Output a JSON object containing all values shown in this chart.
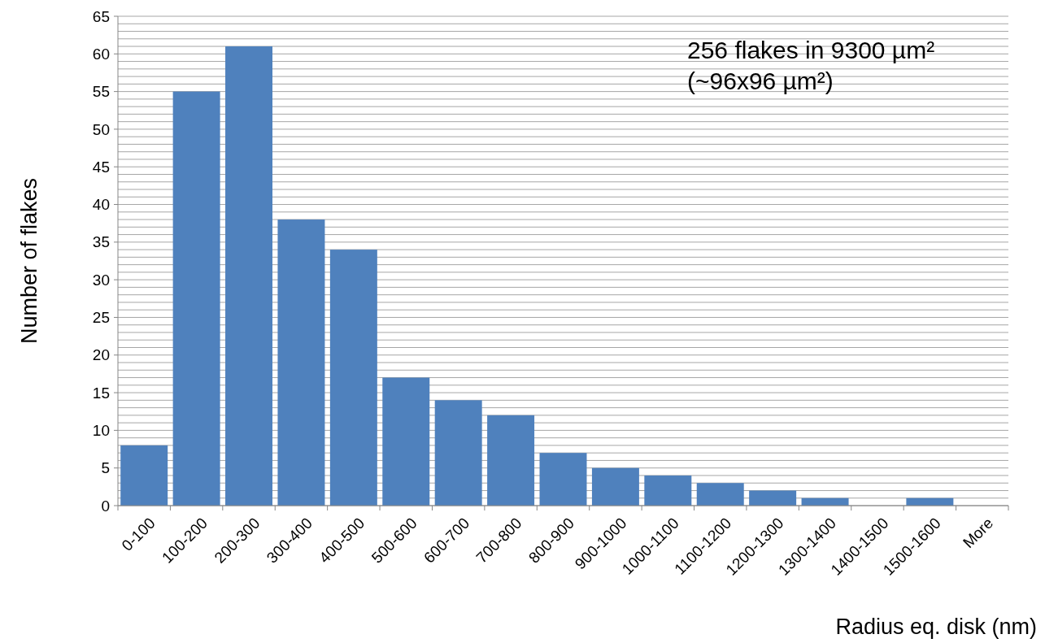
{
  "chart_data": {
    "type": "bar",
    "ylabel": "Number of flakes",
    "xlabel": "Radius eq. disk (nm)",
    "annotations": [
      "256 flakes in 9300 µm²",
      "(~96x96 µm²)"
    ],
    "categories": [
      "0-100",
      "100-200",
      "200-300",
      "300-400",
      "400-500",
      "500-600",
      "600-700",
      "700-800",
      "800-900",
      "900-1000",
      "1000-1100",
      "1100-1200",
      "1200-1300",
      "1300-1400",
      "1400-1500",
      "1500-1600",
      "More"
    ],
    "values": [
      8,
      55,
      61,
      38,
      34,
      17,
      14,
      12,
      7,
      5,
      4,
      3,
      2,
      1,
      0,
      1,
      0
    ],
    "color": "#4f81bd",
    "ylim": [
      0,
      65
    ],
    "yticks": [
      0,
      {
        "value": 1,
        "label": null
      },
      {
        "value": 2,
        "label": null
      },
      {
        "value": 3,
        "label": null
      },
      {
        "value": 4,
        "label": null
      },
      5,
      {
        "value": 6,
        "label": null
      },
      {
        "value": 7,
        "label": null
      },
      {
        "value": 8,
        "label": null
      },
      {
        "value": 9,
        "label": null
      },
      10,
      {
        "value": 11,
        "label": null
      },
      {
        "value": 12,
        "label": null
      },
      {
        "value": 13,
        "label": null
      },
      {
        "value": 14,
        "label": null
      },
      15,
      {
        "value": 16,
        "label": null
      },
      {
        "value": 17,
        "label": null
      },
      {
        "value": 18,
        "label": null
      },
      {
        "value": 19,
        "label": null
      },
      20,
      {
        "value": 21,
        "label": null
      },
      {
        "value": 22,
        "label": null
      },
      {
        "value": 23,
        "label": null
      },
      {
        "value": 24,
        "label": null
      },
      25,
      {
        "value": 26,
        "label": null
      },
      {
        "value": 27,
        "label": null
      },
      {
        "value": 28,
        "label": null
      },
      {
        "value": 29,
        "label": null
      },
      30,
      {
        "value": 31,
        "label": null
      },
      {
        "value": 32,
        "label": null
      },
      {
        "value": 33,
        "label": null
      },
      {
        "value": 34,
        "label": null
      },
      35,
      {
        "value": 36,
        "label": null
      },
      {
        "value": 37,
        "label": null
      },
      {
        "value": 38,
        "label": null
      },
      {
        "value": 39,
        "label": null
      },
      40,
      {
        "value": 41,
        "label": null
      },
      {
        "value": 42,
        "label": null
      },
      {
        "value": 43,
        "label": null
      },
      {
        "value": 44,
        "label": null
      },
      45,
      {
        "value": 46,
        "label": null
      },
      {
        "value": 47,
        "label": null
      },
      {
        "value": 48,
        "label": null
      },
      {
        "value": 49,
        "label": null
      },
      50,
      {
        "value": 51,
        "label": null
      },
      {
        "value": 52,
        "label": null
      },
      {
        "value": 53,
        "label": null
      },
      {
        "value": 54,
        "label": null
      },
      55,
      {
        "value": 56,
        "label": null
      },
      {
        "value": 57,
        "label": null
      },
      {
        "value": 58,
        "label": null
      },
      {
        "value": 59,
        "label": null
      },
      60,
      {
        "value": 61,
        "label": null
      },
      {
        "value": 62,
        "label": null
      },
      {
        "value": 63,
        "label": null
      },
      {
        "value": 64,
        "label": null
      },
      65
    ],
    "grid": "y"
  }
}
